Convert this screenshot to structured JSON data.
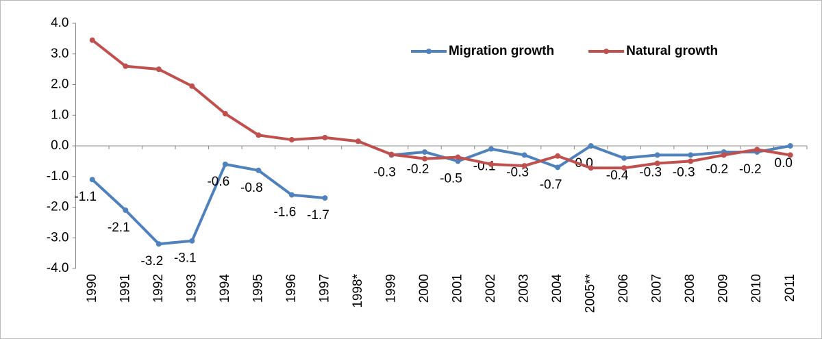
{
  "chart_data": {
    "type": "line",
    "categories": [
      "1990",
      "1991",
      "1992",
      "1993",
      "1994",
      "1995",
      "1996",
      "1997",
      "1998*",
      "1999",
      "2000",
      "2001",
      "2002",
      "2003",
      "2004",
      "2005**",
      "2006",
      "2007",
      "2008",
      "2009",
      "2010",
      "2011"
    ],
    "series": [
      {
        "name": "Migration growth",
        "color": "#4f81bd",
        "values": [
          -1.1,
          -2.1,
          -3.2,
          -3.1,
          -0.6,
          -0.8,
          -1.6,
          -1.7,
          null,
          -0.3,
          -0.2,
          -0.5,
          -0.1,
          -0.3,
          -0.7,
          0.0,
          -0.4,
          -0.3,
          -0.3,
          -0.2,
          -0.2,
          0.0
        ],
        "value_labels": [
          "-1.1",
          "-2.1",
          "-3.2",
          "-3.1",
          "-0.6",
          "-0.8",
          "-1.6",
          "-1.7",
          null,
          "-0.3",
          "-0.2",
          "-0.5",
          "-0.1",
          "-0.3",
          "-0.7",
          "0.0",
          "-0.4",
          "-0.3",
          "-0.3",
          "-0.2",
          "-0.2",
          "0.0"
        ]
      },
      {
        "name": "Natural growth",
        "color": "#c0504d",
        "values": [
          3.45,
          2.6,
          2.5,
          1.95,
          1.05,
          0.35,
          0.2,
          0.27,
          0.15,
          -0.28,
          -0.42,
          -0.37,
          -0.6,
          -0.65,
          -0.33,
          -0.72,
          -0.72,
          -0.57,
          -0.5,
          -0.3,
          -0.12,
          -0.3
        ]
      }
    ],
    "ylim": [
      -4,
      4
    ],
    "yticks": [
      {
        "value": 4,
        "label": "4.0"
      },
      {
        "value": 3,
        "label": "3.0"
      },
      {
        "value": 2,
        "label": "2.0"
      },
      {
        "value": 1,
        "label": "1.0"
      },
      {
        "value": 0,
        "label": "0.0"
      },
      {
        "value": -1,
        "label": "-1.0"
      },
      {
        "value": -2,
        "label": "-2.0"
      },
      {
        "value": -3,
        "label": "-3.0"
      },
      {
        "value": -4,
        "label": "-4.0"
      }
    ],
    "grid": false,
    "legend": "top-right"
  }
}
